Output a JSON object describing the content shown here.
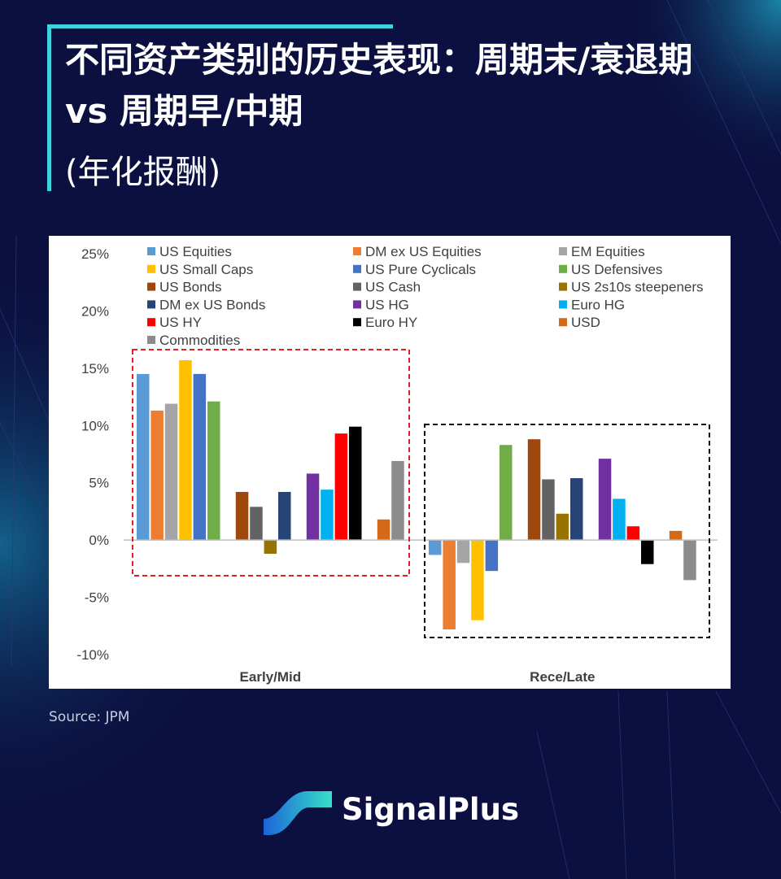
{
  "page": {
    "title": "不同资产类别的历史表现：周期末/衰退期 vs 周期早/中期",
    "subtitle": "(年化报酬)",
    "source": "Source: JPM",
    "brand": "SignalPlus"
  },
  "colors": {
    "background": "#0b1040",
    "accent": "#3fd3e0",
    "highlight_box_early": "#e02020",
    "highlight_box_late": "#111111"
  },
  "chart_data": {
    "type": "bar",
    "categories": [
      "Early/Mid",
      "Rece/Late"
    ],
    "ylim": [
      -10,
      25
    ],
    "yticks": [
      25,
      20,
      15,
      10,
      5,
      0,
      -5,
      -10
    ],
    "ytick_labels": [
      "25%",
      "20%",
      "15%",
      "10%",
      "5%",
      "0%",
      "-5%",
      "-10%"
    ],
    "legend_position": "top",
    "series": [
      {
        "name": "US Equities",
        "color": "#5b9bd5",
        "values": [
          14.5,
          -1.3
        ],
        "group": 0
      },
      {
        "name": "DM ex US Equities",
        "color": "#ed7d31",
        "values": [
          11.3,
          -7.8
        ],
        "group": 0
      },
      {
        "name": "EM Equities",
        "color": "#a5a5a5",
        "values": [
          11.9,
          -2.0
        ],
        "group": 0
      },
      {
        "name": "US Small Caps",
        "color": "#ffc000",
        "values": [
          15.7,
          -7.0
        ],
        "group": 0
      },
      {
        "name": "US Pure Cyclicals",
        "color": "#4472c4",
        "values": [
          14.5,
          -2.7
        ],
        "group": 0
      },
      {
        "name": "US Defensives",
        "color": "#70ad47",
        "values": [
          12.1,
          8.3
        ],
        "group": 0
      },
      {
        "name": "US Bonds",
        "color": "#9e480e",
        "values": [
          4.2,
          8.8
        ],
        "group": 1
      },
      {
        "name": "US Cash",
        "color": "#636363",
        "values": [
          2.9,
          5.3
        ],
        "group": 1
      },
      {
        "name": "US 2s10s steepeners",
        "color": "#997300",
        "values": [
          -1.2,
          2.3
        ],
        "group": 1
      },
      {
        "name": "DM ex US Bonds",
        "color": "#264478",
        "values": [
          4.2,
          5.4
        ],
        "group": 1
      },
      {
        "name": "US HG",
        "color": "#7030a0",
        "values": [
          5.8,
          7.1
        ],
        "group": 2
      },
      {
        "name": "Euro HG",
        "color": "#00b0f0",
        "values": [
          4.4,
          3.6
        ],
        "group": 2
      },
      {
        "name": "US HY",
        "color": "#ff0000",
        "values": [
          9.3,
          1.2
        ],
        "group": 2
      },
      {
        "name": "Euro HY",
        "color": "#000000",
        "values": [
          9.9,
          -2.1
        ],
        "group": 2
      },
      {
        "name": "USD",
        "color": "#d46a17",
        "values": [
          1.8,
          0.8
        ],
        "group": 3
      },
      {
        "name": "Commodities",
        "color": "#8c8c8c",
        "values": [
          6.9,
          -3.5
        ],
        "group": 3
      }
    ]
  }
}
